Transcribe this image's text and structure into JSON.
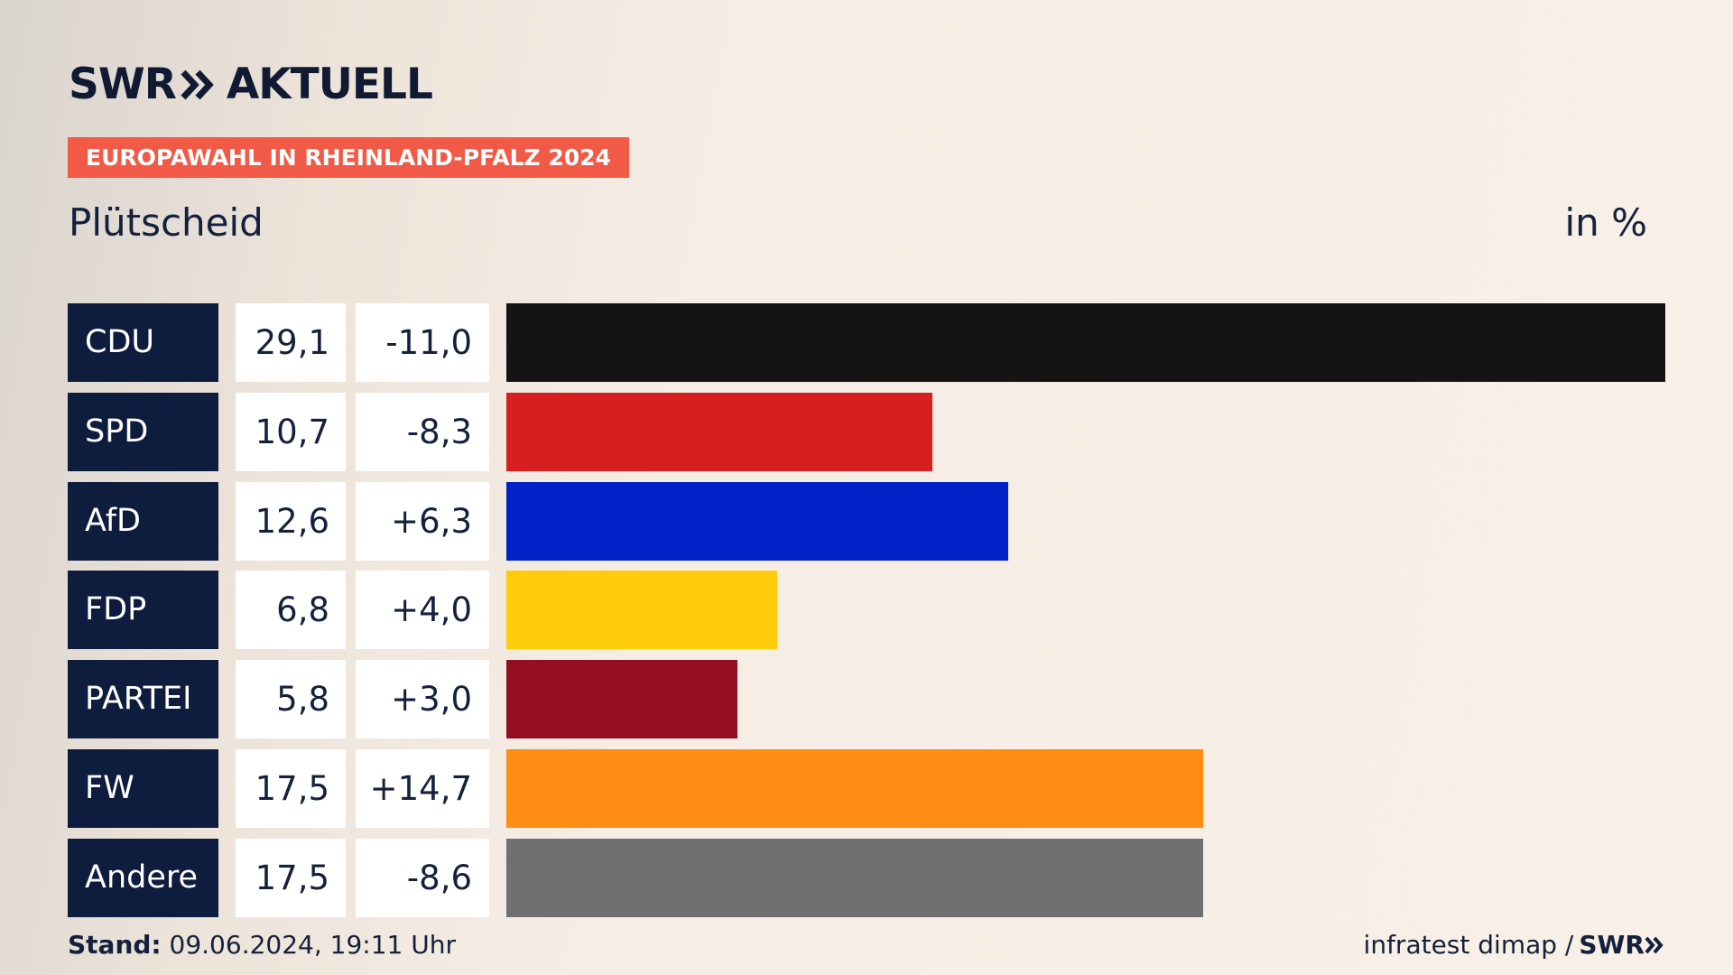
{
  "header": {
    "logo_brand": "SWR",
    "logo_product": "AKTUELL",
    "badge": "EUROPAWAHL IN RHEINLAND-PFALZ 2024",
    "place": "Plütscheid",
    "unit": "in %"
  },
  "footer": {
    "stand_label": "Stand:",
    "stand_value": "09.06.2024, 19:11 Uhr",
    "source": "infratest dimap /",
    "source_brand": "SWR"
  },
  "colors": {
    "badge": "#f05a47",
    "label_bg": "#0e1c3d"
  },
  "chart_data": {
    "type": "bar",
    "categories": [
      "CDU",
      "SPD",
      "AfD",
      "FDP",
      "PARTEI",
      "FW",
      "Andere"
    ],
    "values": [
      29.1,
      10.7,
      12.6,
      6.8,
      5.8,
      17.5,
      17.5
    ],
    "value_labels": [
      "29,1",
      "10,7",
      "12,6",
      "6,8",
      "5,8",
      "17,5",
      "17,5"
    ],
    "diff_labels": [
      "-11,0",
      "-8,3",
      "+6,3",
      "+4,0",
      "+3,0",
      "+14,7",
      "-8,6"
    ],
    "colors": [
      "#141414",
      "#d71f1f",
      "#0021c6",
      "#ffcc0a",
      "#930f20",
      "#ff8c14",
      "#6f7072"
    ],
    "xlim": [
      0,
      29.1
    ],
    "orientation": "horizontal"
  }
}
